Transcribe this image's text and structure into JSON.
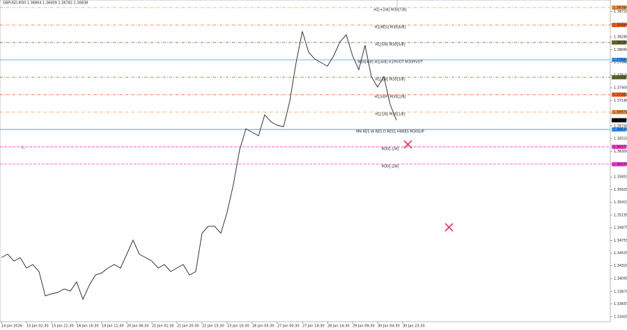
{
  "chart_data": {
    "type": "line",
    "title": "GBPUSD,M30  1.36804 1.36909 1.36782 1.36838",
    "color": "#333333",
    "categories": [
      "14 Jan 2026",
      null,
      null,
      null,
      "15 Jan 02:30",
      null,
      null,
      null,
      "15 Jan 21:30",
      null,
      null,
      null,
      "16 Jan 16:30",
      null,
      null,
      null,
      "19 Jan 11:30",
      null,
      null,
      null,
      "20 Jan 06:30",
      null,
      null,
      null,
      "21 Jan 01:30",
      null,
      null,
      null,
      "21 Jan 20:30",
      null,
      null,
      null,
      "22 Jan 15:30",
      null,
      null,
      null,
      "23 Jan 10:30",
      null,
      null,
      null,
      "26 Jan 05:30",
      null,
      null,
      null,
      "27 Jan 00:30",
      null,
      null,
      null,
      "27 Jan 19:30",
      null,
      null,
      null,
      "28 Jan 14:30",
      null,
      null,
      null,
      "29 Jan 09:30",
      null,
      null,
      null,
      "30 Jan 04:30",
      null,
      null,
      null,
      "30 Jan 23:30",
      null
    ],
    "values": [
      1.34459,
      1.34519,
      1.34399,
      1.34459,
      1.34278,
      1.34339,
      1.34218,
      1.33796,
      1.33832,
      1.33856,
      1.33917,
      1.3388,
      1.34037,
      1.33736,
      1.33977,
      1.34158,
      1.34194,
      1.34278,
      1.34339,
      1.34278,
      1.34519,
      1.34761,
      1.34519,
      1.34459,
      1.34399,
      1.34278,
      1.34339,
      1.34218,
      1.34278,
      1.34339,
      1.34158,
      1.34218,
      1.34881,
      1.35002,
      1.35002,
      1.34881,
      1.35243,
      1.35725,
      1.36328,
      1.36689,
      1.36629,
      1.36569,
      1.36931,
      1.3681,
      1.3675,
      1.36726,
      1.37172,
      1.37835,
      1.38377,
      1.38016,
      1.37895,
      1.37835,
      1.37775,
      1.37955,
      1.38196,
      1.38317,
      1.37955,
      1.37714,
      1.38136,
      1.37594,
      1.37413,
      1.37594,
      1.37111,
      1.36838,
      null,
      null
    ],
    "last": 1.36838,
    "ylim": [
      1.3335,
      1.3892
    ],
    "yticks": [
      1.33435,
      1.33655,
      {
        "value": 1.3387,
        "label": "1.33870"
      },
      1.34095,
      {
        "value": 1.3432,
        "label": "1.34320"
      },
      1.34535,
      1.34755,
      1.34975,
      1.35195,
      1.35415,
      1.35635,
      1.35855,
      {
        "value": 1.3608,
        "label": "1.36080"
      },
      {
        "value": 1.363,
        "label": "1.36300"
      },
      {
        "value": 1.3652,
        "label": "1.36520"
      },
      {
        "value": 1.3674,
        "label": "1.36740"
      },
      {
        "value": 1.3696,
        "label": "1.36960"
      },
      {
        "value": 1.3718,
        "label": "1.37180"
      },
      {
        "value": 1.374,
        "label": "1.37400"
      },
      {
        "value": 1.3762,
        "label": "1.37620"
      },
      {
        "value": 1.3784,
        "label": "1.37840"
      },
      {
        "value": 1.3806,
        "label": "1.38060"
      },
      {
        "value": 1.3828,
        "label": "1.38280"
      },
      {
        "value": 1.385,
        "label": "1.38500"
      },
      {
        "value": 1.3872,
        "label": "1.38720"
      }
    ],
    "levels": [
      {
        "label": "H1[+2/8] M30[7/8]",
        "value": 1.38789,
        "color": "#f09040",
        "dash": "4 2 1 2"
      },
      {
        "label": "H1[RES] M30[6/8]",
        "value": 1.38486,
        "color": "#ff5a1e",
        "dash": "4 2 1 2"
      },
      {
        "label": "H1[5/8] M30[5/8]",
        "value": 1.38184,
        "color": "#6b6b2f",
        "dash": "4 2 1 2"
      },
      {
        "label": "M30[4/8] H1[4/8] H1PIVOT M30PIVOT",
        "value": 1.37883,
        "color": "#3399ff",
        "dash": "none"
      },
      {
        "label": "H1[3/8] M30[3/8]",
        "value": 1.37582,
        "color": "#6b6b2f",
        "dash": "4 2 1 2"
      },
      {
        "label": "H1[SUP] M30[2/8]",
        "value": 1.37281,
        "color": "#ff5a1e",
        "dash": "4 2 1 2"
      },
      {
        "label": "H1[1/8] M30[1/8]",
        "value": 1.36979,
        "color": "#f09040",
        "dash": "4 2 1 2"
      },
      {
        "label": "MN RES W RES D RES1 H4RES M30SUP",
        "value": 1.36678,
        "color": "#3399ff",
        "dash": "none"
      },
      {
        "label": "M30[-1/8]",
        "value": 1.36377,
        "color": "#ff33cc",
        "dash": "4 2"
      },
      {
        "label": "M30[-2/8]",
        "value": 1.36076,
        "color": "#ff33cc",
        "dash": "4 2"
      }
    ]
  }
}
